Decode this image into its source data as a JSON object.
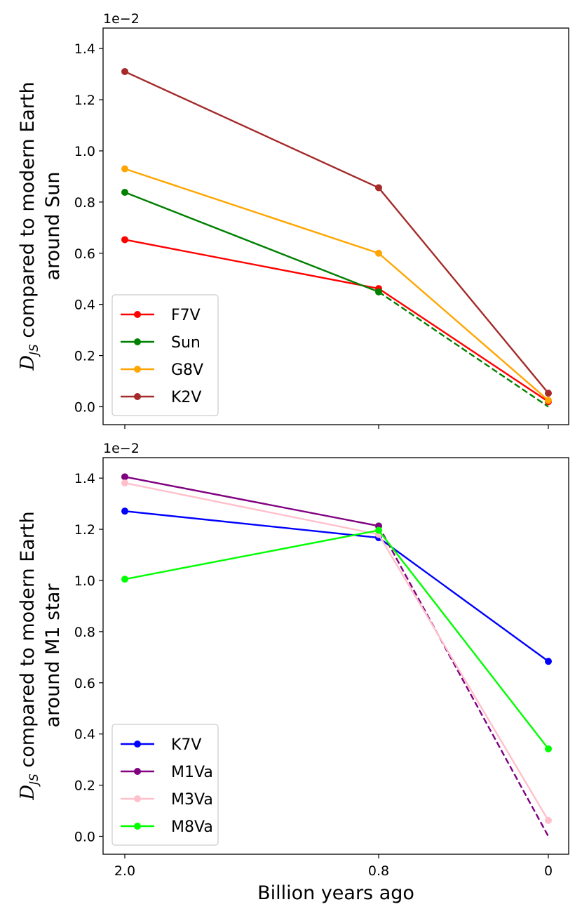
{
  "chart_data": [
    {
      "type": "line",
      "xlabel": "",
      "ylabel_line1": "compared to modern Earth",
      "ylabel_line2": "around Sun",
      "ylabel_symbol": "D",
      "ylabel_subscript": "JS",
      "offset_text": "1e−2",
      "ylim": [
        -0.07,
        1.48
      ],
      "yticks": [
        0.0,
        0.2,
        0.4,
        0.6,
        0.8,
        1.0,
        1.2,
        1.4
      ],
      "ytick_labels": [
        "0.0",
        "0.2",
        "0.4",
        "0.6",
        "0.8",
        "1.0",
        "1.2",
        "1.4"
      ],
      "xtick_labels": [],
      "legend_position": "lower-left",
      "series": [
        {
          "name": "F7V",
          "color": "#ff0000",
          "values": [
            0.653,
            0.462,
            0.02
          ]
        },
        {
          "name": "Sun",
          "color": "#008000",
          "values": [
            0.838,
            0.449,
            0.0
          ],
          "dashed_last": true
        },
        {
          "name": "G8V",
          "color": "#ffa500",
          "values": [
            0.93,
            0.6,
            0.025
          ]
        },
        {
          "name": "K2V",
          "color": "#a52a2a",
          "values": [
            1.31,
            0.856,
            0.053
          ]
        }
      ]
    },
    {
      "type": "line",
      "xlabel": "Billion years ago",
      "ylabel_line1": "compared to modern Earth",
      "ylabel_line2": "around M1 star",
      "ylabel_symbol": "D",
      "ylabel_subscript": "JS",
      "offset_text": "1e−2",
      "ylim": [
        -0.07,
        1.48
      ],
      "yticks": [
        0.0,
        0.2,
        0.4,
        0.6,
        0.8,
        1.0,
        1.2,
        1.4
      ],
      "ytick_labels": [
        "0.0",
        "0.2",
        "0.4",
        "0.6",
        "0.8",
        "1.0",
        "1.2",
        "1.4"
      ],
      "xtick_labels": [
        "2.0",
        "0.8",
        "0"
      ],
      "legend_position": "lower-left",
      "series": [
        {
          "name": "K7V",
          "color": "#0000ff",
          "values": [
            1.271,
            1.167,
            0.684
          ]
        },
        {
          "name": "M1Va",
          "color": "#800080",
          "values": [
            1.405,
            1.213,
            0.0
          ],
          "dashed_last": true
        },
        {
          "name": "M3Va",
          "color": "#ffc0cb",
          "values": [
            1.381,
            1.18,
            0.062
          ]
        },
        {
          "name": "M8Va",
          "color": "#00ff00",
          "values": [
            1.005,
            1.196,
            0.342
          ]
        }
      ]
    }
  ]
}
